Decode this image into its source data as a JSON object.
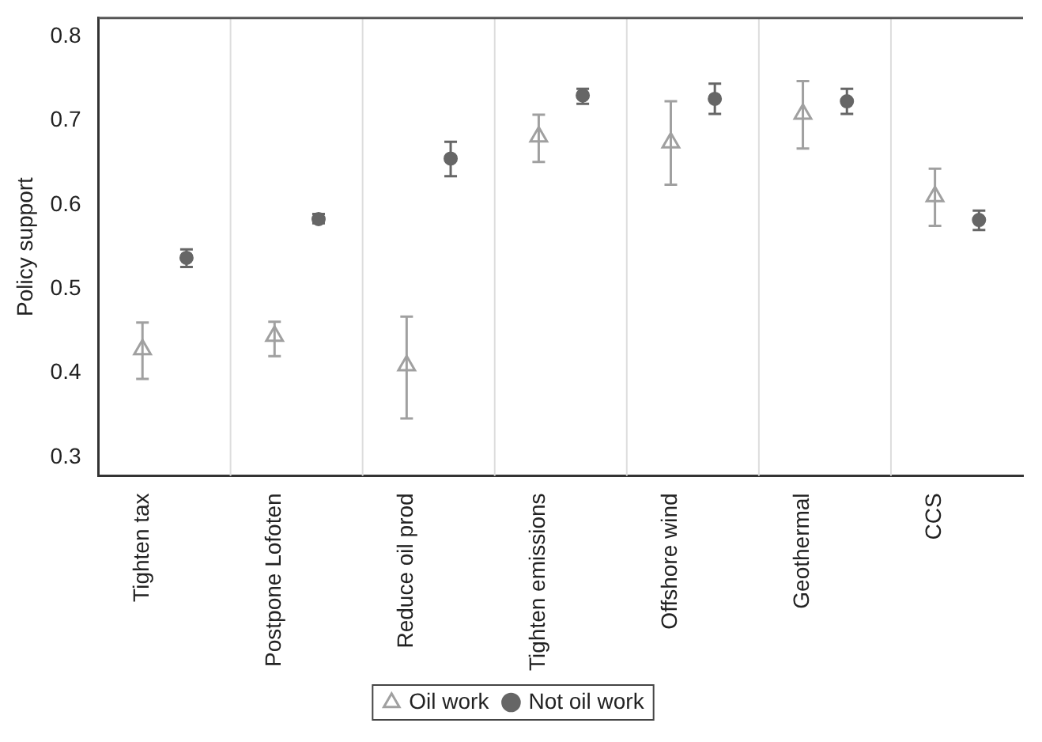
{
  "chart_data": {
    "type": "scatter",
    "ylabel": "Policy support",
    "categories": [
      "Tighten tax",
      "Postpone Lofoten",
      "Reduce oil prod",
      "Tighten emissions",
      "Offshore wind",
      "Geothermal",
      "CCS"
    ],
    "series": [
      {
        "name": "Oil work",
        "color": "#a0a0a0",
        "marker": "triangle",
        "values": [
          0.428,
          0.444,
          0.409,
          0.681,
          0.674,
          0.708,
          0.61
        ],
        "errors": [
          [
            0.393,
            0.46
          ],
          [
            0.42,
            0.461
          ],
          [
            0.346,
            0.467
          ],
          [
            0.651,
            0.707
          ],
          [
            0.624,
            0.723
          ],
          [
            0.667,
            0.747
          ],
          [
            0.575,
            0.643
          ]
        ]
      },
      {
        "name": "Not oil work",
        "color": "#666666",
        "marker": "circle",
        "values": [
          0.537,
          0.583,
          0.655,
          0.73,
          0.726,
          0.723,
          0.582
        ],
        "errors": [
          [
            0.526,
            0.547
          ],
          [
            0.578,
            0.589
          ],
          [
            0.634,
            0.675
          ],
          [
            0.72,
            0.738
          ],
          [
            0.708,
            0.744
          ],
          [
            0.708,
            0.738
          ],
          [
            0.57,
            0.593
          ]
        ]
      }
    ],
    "ylim": [
      0.278,
      0.822
    ],
    "yticks": [
      0.3,
      0.4,
      0.5,
      0.6,
      0.7,
      0.8
    ],
    "grid": "x",
    "legend": "bottom"
  }
}
